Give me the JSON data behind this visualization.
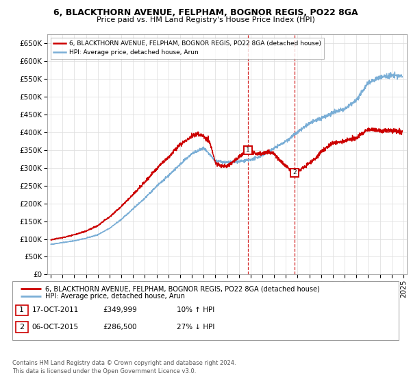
{
  "title_line1": "6, BLACKTHORN AVENUE, FELPHAM, BOGNOR REGIS, PO22 8GA",
  "title_line2": "Price paid vs. HM Land Registry's House Price Index (HPI)",
  "ylim": [
    0,
    675000
  ],
  "yticks": [
    0,
    50000,
    100000,
    150000,
    200000,
    250000,
    300000,
    350000,
    400000,
    450000,
    500000,
    550000,
    600000,
    650000
  ],
  "ytick_labels": [
    "£0",
    "£50K",
    "£100K",
    "£150K",
    "£200K",
    "£250K",
    "£300K",
    "£350K",
    "£400K",
    "£450K",
    "£500K",
    "£550K",
    "£600K",
    "£650K"
  ],
  "xlim_start": 1994.7,
  "xlim_end": 2025.3,
  "sale1_date": 2011.79,
  "sale1_price": 349999,
  "sale2_date": 2015.75,
  "sale2_price": 286500,
  "legend_line1": "6, BLACKTHORN AVENUE, FELPHAM, BOGNOR REGIS, PO22 8GA (detached house)",
  "legend_line2": "HPI: Average price, detached house, Arun",
  "sale1_col1": "17-OCT-2011",
  "sale1_col2": "£349,999",
  "sale1_col3": "10% ↑ HPI",
  "sale2_col1": "06-OCT-2015",
  "sale2_col2": "£286,500",
  "sale2_col3": "27% ↓ HPI",
  "footer": "Contains HM Land Registry data © Crown copyright and database right 2024.\nThis data is licensed under the Open Government Licence v3.0.",
  "line_color_red": "#cc0000",
  "line_color_blue": "#7aaed6",
  "line_color_blue_fill": "#c5dff0",
  "grid_color": "#e0e0e0",
  "background_color": "#ffffff"
}
